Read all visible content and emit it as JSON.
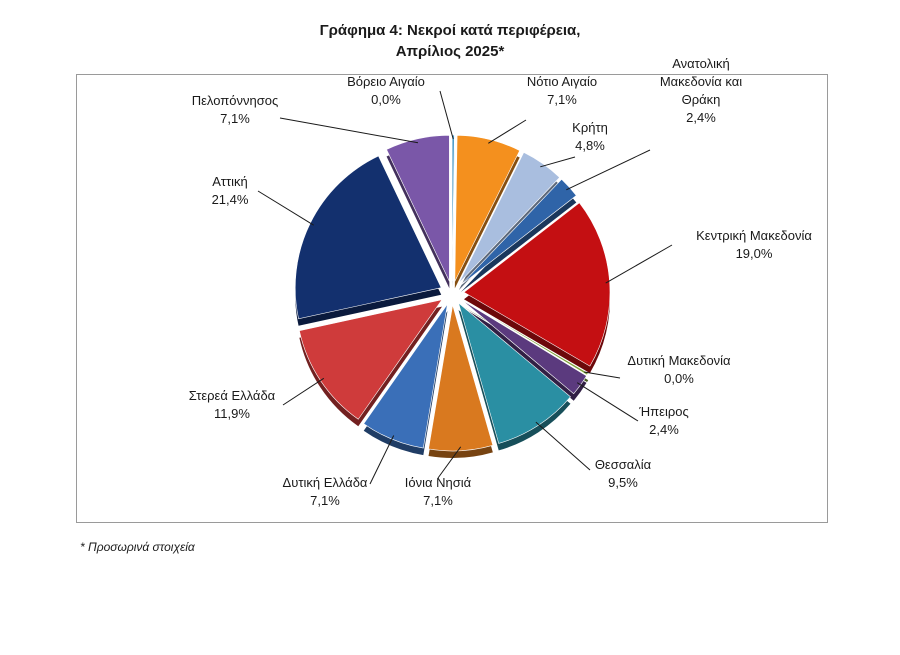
{
  "title_line1": "Γράφημα 4: Νεκροί κατά περιφέρεια,",
  "title_line2": "Απρίλιος 2025*",
  "footnote": "* Προσωρινά στοιχεία",
  "chart_data": {
    "type": "pie",
    "title": "Γράφημα 4: Νεκροί κατά περιφέρεια, Απρίλιος 2025*",
    "unit": "%",
    "slices": [
      {
        "key": "voreio",
        "label_lines": [
          "Βόρειο Αιγαίο"
        ],
        "pct_label": "0,0%",
        "value": 0.0,
        "color": "#4a9bc9"
      },
      {
        "key": "notio",
        "label_lines": [
          "Νότιο Αιγαίο"
        ],
        "pct_label": "7,1%",
        "value": 7.1,
        "color": "#f4901e"
      },
      {
        "key": "kriti",
        "label_lines": [
          "Κρήτη"
        ],
        "pct_label": "4,8%",
        "value": 4.8,
        "color": "#a9bedf"
      },
      {
        "key": "amth",
        "label_lines": [
          "Ανατολική",
          "Μακεδονία και",
          "Θράκη"
        ],
        "pct_label": "2,4%",
        "value": 2.4,
        "color": "#2f64a8"
      },
      {
        "key": "kmak",
        "label_lines": [
          "Κεντρική Μακεδονία"
        ],
        "pct_label": "19,0%",
        "value": 19.0,
        "color": "#c40f12"
      },
      {
        "key": "dmak",
        "label_lines": [
          "Δυτική Μακεδονία"
        ],
        "pct_label": "0,0%",
        "value": 0.0,
        "color": "#7fa23a"
      },
      {
        "key": "ipeiros",
        "label_lines": [
          "Ήπειρος"
        ],
        "pct_label": "2,4%",
        "value": 2.4,
        "color": "#5b3a7e"
      },
      {
        "key": "thessalia",
        "label_lines": [
          "Θεσσαλία"
        ],
        "pct_label": "9,5%",
        "value": 9.5,
        "color": "#2a8fa3"
      },
      {
        "key": "ionia",
        "label_lines": [
          "Ιόνια Νησιά"
        ],
        "pct_label": "7,1%",
        "value": 7.1,
        "color": "#d9791f"
      },
      {
        "key": "dell",
        "label_lines": [
          "Δυτική Ελλάδα"
        ],
        "pct_label": "7,1%",
        "value": 7.1,
        "color": "#3a6fb8"
      },
      {
        "key": "sterea",
        "label_lines": [
          "Στερεά Ελλάδα"
        ],
        "pct_label": "11,9%",
        "value": 11.9,
        "color": "#cf3b3b"
      },
      {
        "key": "attiki",
        "label_lines": [
          "Αττική"
        ],
        "pct_label": "21,4%",
        "value": 21.4,
        "color": "#13306e"
      },
      {
        "key": "pelop",
        "label_lines": [
          "Πελοπόννησος"
        ],
        "pct_label": "7,1%",
        "value": 7.1,
        "color": "#7a57a8"
      }
    ]
  }
}
